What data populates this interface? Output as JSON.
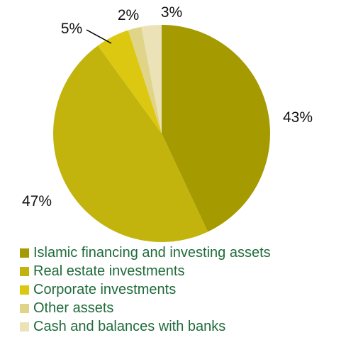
{
  "chart_data": {
    "type": "pie",
    "legend_position": "bottom",
    "legend_text_color": "#1f6b3a",
    "slices": [
      {
        "label": "Islamic financing and investing assets",
        "value": 43,
        "display": "43%",
        "color": "#a59a00"
      },
      {
        "label": "Real estate investments",
        "value": 47,
        "display": "47%",
        "color": "#c2b40d"
      },
      {
        "label": "Corporate investments",
        "value": 5,
        "display": "5%",
        "color": "#dcc810"
      },
      {
        "label": "Other assets",
        "value": 2,
        "display": "2%",
        "color": "#e0d488"
      },
      {
        "label": "Cash and balances with banks",
        "value": 3,
        "display": "3%",
        "color": "#ece2b8"
      }
    ]
  }
}
